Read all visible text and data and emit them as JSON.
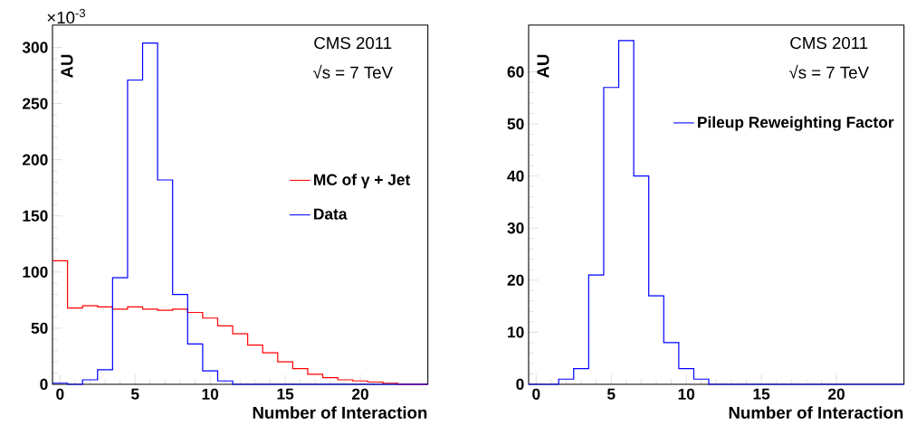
{
  "chart_data": [
    {
      "type": "histogram",
      "xlabel": "Number of Interaction",
      "ylabel": "AU",
      "bins": [
        -0.5,
        0.5,
        1.5,
        2.5,
        3.5,
        4.5,
        5.5,
        6.5,
        7.5,
        8.5,
        9.5,
        10.5,
        11.5,
        12.5,
        13.5,
        14.5,
        15.5,
        16.5,
        17.5,
        18.5,
        19.5,
        20.5,
        21.5,
        22.5,
        23.5,
        24.5
      ],
      "series": [
        {
          "name": "MC of γ + Jet",
          "color": "#ff0000",
          "values": [
            110,
            68,
            70,
            69,
            67,
            69,
            67,
            66,
            67,
            64,
            59,
            52,
            45,
            35,
            28,
            20,
            14,
            9,
            6,
            4,
            3,
            2,
            1,
            0,
            0
          ]
        },
        {
          "name": "Data",
          "color": "#0000ff",
          "values": [
            1,
            0,
            4,
            13,
            95,
            271,
            304,
            182,
            80,
            36,
            12,
            3,
            0,
            0,
            0,
            0,
            0,
            0,
            0,
            0,
            0,
            0,
            0,
            0,
            0
          ]
        }
      ],
      "xlim": [
        -0.5,
        24.5
      ],
      "xticks": [
        0,
        5,
        10,
        15,
        20
      ],
      "ylim": [
        0,
        320
      ],
      "yticks": [
        0,
        50,
        100,
        150,
        200,
        250,
        300
      ],
      "legend": "right",
      "grid": false,
      "annotations": [
        "CMS 2011",
        "√s = 7 TeV",
        "×10$^{-3}$"
      ]
    },
    {
      "type": "histogram",
      "xlabel": "Number of Interaction",
      "ylabel": "AU",
      "bins": [
        -0.5,
        0.5,
        1.5,
        2.5,
        3.5,
        4.5,
        5.5,
        6.5,
        7.5,
        8.5,
        9.5,
        10.5,
        11.5,
        12.5,
        13.5,
        14.5,
        15.5,
        16.5,
        17.5,
        18.5,
        19.5,
        20.5,
        21.5,
        22.5,
        23.5,
        24.5
      ],
      "series": [
        {
          "name": "Pileup Reweighting Factor",
          "color": "#0000ff",
          "values": [
            0,
            0,
            1,
            3,
            21,
            57,
            66,
            40,
            17,
            8,
            3,
            1,
            0,
            0,
            0,
            0,
            0,
            0,
            0,
            0,
            0,
            0,
            0,
            0,
            0
          ]
        }
      ],
      "xlim": [
        -0.5,
        24.5
      ],
      "xticks": [
        0,
        5,
        10,
        15,
        20
      ],
      "ylim": [
        0,
        69
      ],
      "yticks": [
        0,
        10,
        20,
        30,
        40,
        50,
        60
      ],
      "legend": "top right",
      "grid": false,
      "annotations": [
        "CMS 2011",
        "√s = 7 TeV"
      ]
    }
  ]
}
